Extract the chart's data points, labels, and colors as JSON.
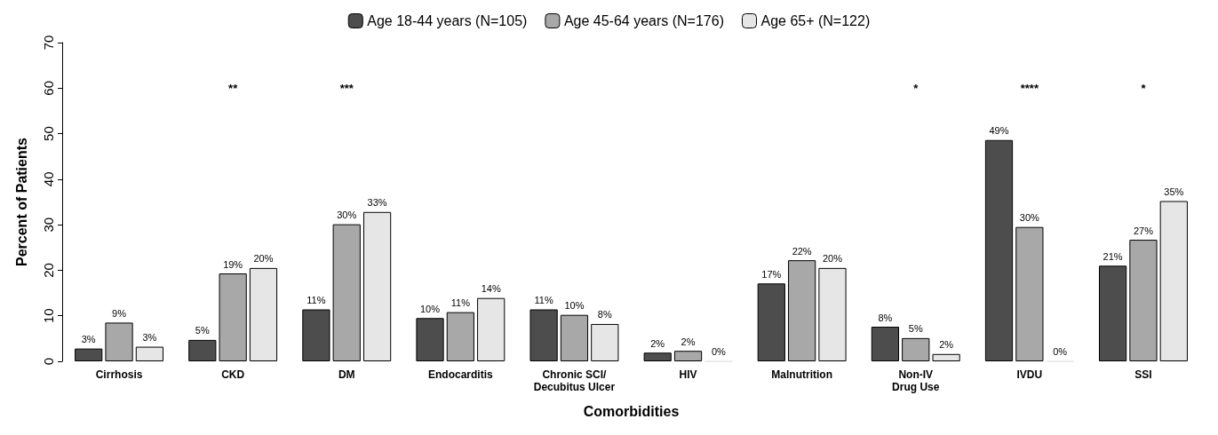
{
  "chart_data": {
    "type": "bar",
    "xlabel": "Comorbidities",
    "ylabel": "Percent of Patients",
    "categories": [
      "Cirrhosis",
      "CKD",
      "DM",
      "Endocarditis",
      "Chronic SCI/\nDecubitus Ulcer",
      "HIV",
      "Malnutrition",
      "Non-IV\nDrug Use",
      "IVDU",
      "SSI"
    ],
    "series": [
      {
        "name": "Age 18-44 years (N=105)",
        "color": "#4d4d4d",
        "values": [
          2.8,
          4.7,
          11.4,
          9.5,
          11.4,
          1.9,
          17.1,
          7.6,
          48.6,
          21.0
        ],
        "value_labels": [
          "3%",
          "5%",
          "11%",
          "10%",
          "11%",
          "2%",
          "17%",
          "8%",
          "49%",
          "21%"
        ]
      },
      {
        "name": "Age 45-64 years (N=176)",
        "color": "#a8a8a8",
        "values": [
          8.5,
          19.3,
          30.1,
          10.8,
          10.2,
          2.3,
          22.2,
          5.1,
          29.5,
          26.7
        ],
        "value_labels": [
          "9%",
          "19%",
          "30%",
          "11%",
          "10%",
          "2%",
          "22%",
          "5%",
          "30%",
          "27%"
        ]
      },
      {
        "name": "Age 65+ (N=122)",
        "color": "#e6e6e6",
        "values": [
          3.2,
          20.5,
          32.8,
          13.9,
          8.2,
          0,
          20.5,
          1.6,
          0,
          35.2
        ],
        "value_labels": [
          "3%",
          "20%",
          "33%",
          "14%",
          "8%",
          "0%",
          "20%",
          "2%",
          "0%",
          "35%"
        ]
      }
    ],
    "ylim": [
      0,
      70
    ],
    "yticks": [
      0,
      10,
      20,
      30,
      40,
      50,
      60,
      70
    ],
    "grid": false,
    "legend": "top",
    "annotations": [
      "**",
      "***",
      "*",
      "****",
      "*"
    ]
  }
}
